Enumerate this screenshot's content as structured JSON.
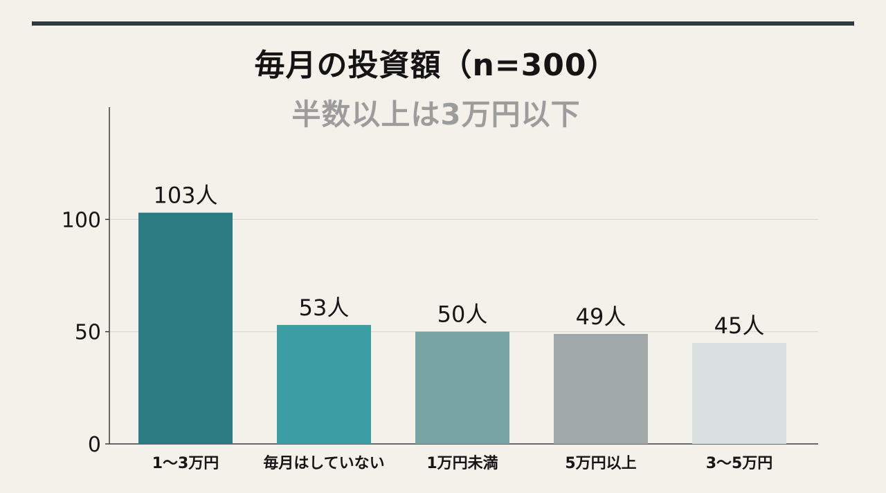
{
  "header": {
    "title": "毎月の投資額（n=300）",
    "subtitle": "半数以上は3万円以下"
  },
  "chart_data": {
    "type": "bar",
    "title": "毎月の投資額（n=300）",
    "subtitle": "半数以上は3万円以下",
    "categories": [
      "1〜3万円",
      "毎月はしていない",
      "1万円未満",
      "5万円以上",
      "3〜5万円"
    ],
    "values": [
      103,
      53,
      50,
      49,
      45
    ],
    "value_labels": [
      "103人",
      "53人",
      "50人",
      "49人",
      "45人"
    ],
    "bar_colors": [
      "#2b7b82",
      "#3d9ea5",
      "#78a4a5",
      "#a1a8a9",
      "#d9dfe1"
    ],
    "yticks": [
      0,
      50,
      100
    ],
    "ytick_labels": [
      "0",
      "50",
      "100"
    ],
    "ylim": [
      0,
      150
    ],
    "xlabel": "",
    "ylabel": "",
    "grid": true,
    "legend": "none"
  }
}
